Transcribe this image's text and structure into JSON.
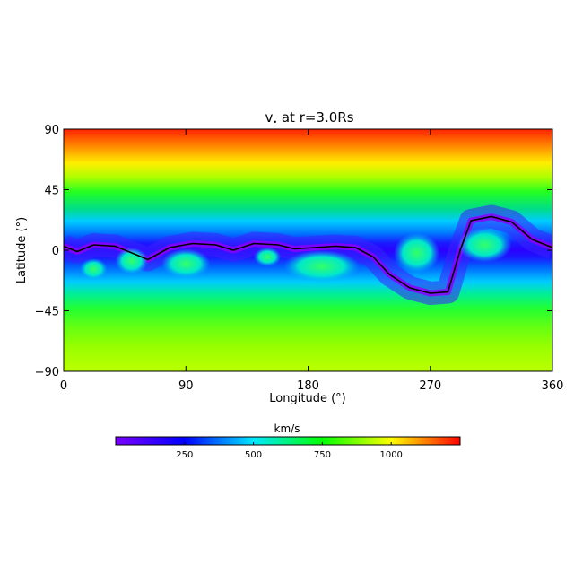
{
  "chart_data": {
    "type": "heatmap",
    "title": "v",
    "title_subscript": "•",
    "title_suffix": " at r=3.0Rs",
    "xlabel": "Longitude (°)",
    "ylabel": "Latitude (°)",
    "xlim": [
      0,
      360
    ],
    "ylim": [
      -90,
      90
    ],
    "x_ticks": [
      "0",
      "90",
      "180",
      "270",
      "360"
    ],
    "x_tick_values": [
      0,
      90,
      180,
      270,
      360
    ],
    "y_ticks": [
      "90",
      "45",
      "0",
      "−45",
      "−90"
    ],
    "y_tick_values": [
      90,
      45,
      0,
      -45,
      -90
    ],
    "colorbar": {
      "label": "km/s",
      "range": [
        0,
        1250
      ],
      "ticks": [
        "250",
        "500",
        "750",
        "1000"
      ],
      "tick_values": [
        250,
        500,
        750,
        1000
      ],
      "orientation": "horizontal",
      "position": "bottom"
    },
    "colormap": [
      "#7a00ff",
      "#0000ff",
      "#00e8ff",
      "#00ff00",
      "#ffff00",
      "#ff0000"
    ],
    "neutral_line": {
      "description": "black contour line",
      "lon": [
        0,
        10,
        22,
        38,
        55,
        62,
        78,
        95,
        112,
        125,
        140,
        158,
        170,
        185,
        200,
        215,
        228,
        240,
        255,
        270,
        283,
        292,
        300,
        315,
        330,
        345,
        360
      ],
      "lat": [
        3,
        -1,
        4,
        3,
        -4,
        -7,
        2,
        5,
        4,
        0,
        5,
        4,
        1,
        2,
        3,
        2,
        -5,
        -18,
        -28,
        -32,
        -31,
        0,
        22,
        25,
        21,
        8,
        2
      ]
    },
    "grid": false
  }
}
